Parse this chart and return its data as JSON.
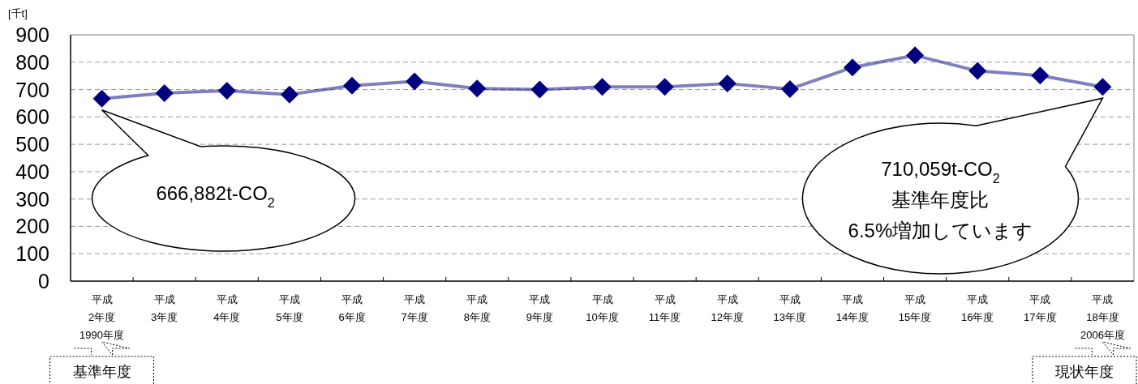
{
  "chart_data": {
    "type": "line",
    "ylabel": "[千t]",
    "categories": [
      "平成\n2年度",
      "平成\n3年度",
      "平成\n4年度",
      "平成\n5年度",
      "平成\n6年度",
      "平成\n7年度",
      "平成\n8年度",
      "平成\n9年度",
      "平成\n10年度",
      "平成\n11年度",
      "平成\n12年度",
      "平成\n13年度",
      "平成\n14年度",
      "平成\n15年度",
      "平成\n16年度",
      "平成\n17年度",
      "平成\n18年度"
    ],
    "series": [
      {
        "color": "#000080",
        "values": [
          667,
          687,
          696,
          682,
          714,
          730,
          704,
          700,
          710,
          710,
          722,
          702,
          781,
          825,
          768,
          751,
          710
        ]
      }
    ],
    "ylim": [
      0,
      900
    ],
    "yticks": [
      0,
      100,
      200,
      300,
      400,
      500,
      600,
      700,
      800,
      900
    ],
    "grid": "y",
    "marker": "diamond",
    "line_style": "solid",
    "annotations": [
      "666,882t-CO$_{2}$",
      "710,059t-CO$_{2}$\n基準年度比\n6.5%増加しています",
      "1990年度",
      "基準年度",
      "2006年度",
      "現状年度"
    ]
  }
}
